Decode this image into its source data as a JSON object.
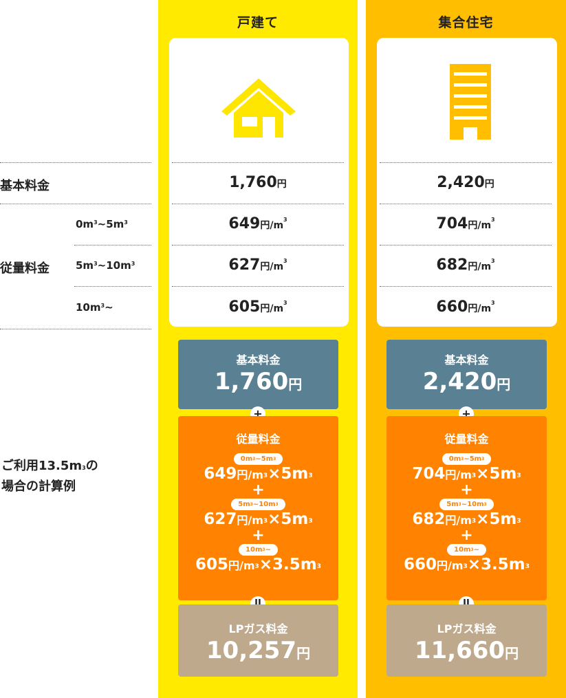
{
  "columns": [
    {
      "title": "戸建て",
      "icon": "house-icon"
    },
    {
      "title": "集合住宅",
      "icon": "apartment-building-icon"
    }
  ],
  "rows": {
    "base_fee_label": "基本料金",
    "usage_fee_label": "従量料金",
    "tiers": [
      "0m³~5m³",
      "5m³~10m³",
      "10m³~"
    ]
  },
  "prices": {
    "house": {
      "base": "1,760",
      "tiers": [
        "649",
        "627",
        "605"
      ]
    },
    "apartment": {
      "base": "2,420",
      "tiers": [
        "704",
        "682",
        "660"
      ]
    }
  },
  "units": {
    "yen": "円",
    "per_m3": "円/m³",
    "per_m3_short": "/m³"
  },
  "calculation": {
    "label_line1": "ご利用13.5m³の",
    "label_line2": "場合の計算例",
    "base_label": "基本料金",
    "usage_label": "従量料金",
    "total_label": "LPガス料金",
    "plus": "+",
    "equals": "II",
    "house": {
      "base": "1,760",
      "lines": [
        "649円/m³×5m³",
        "627円/m³×5m³",
        "605円/m³×3.5m³"
      ],
      "total": "10,257"
    },
    "apartment": {
      "base": "2,420",
      "lines": [
        "704円/m³×5m³",
        "682円/m³×5m³",
        "660円/m³×3.5m³"
      ],
      "total": "11,660"
    }
  },
  "colors": {
    "house_bg": "#ffea00",
    "apartment_bg": "#ffbf00",
    "base_box": "#5a8093",
    "usage_box": "#ff8200",
    "total_box": "#bea98d"
  }
}
